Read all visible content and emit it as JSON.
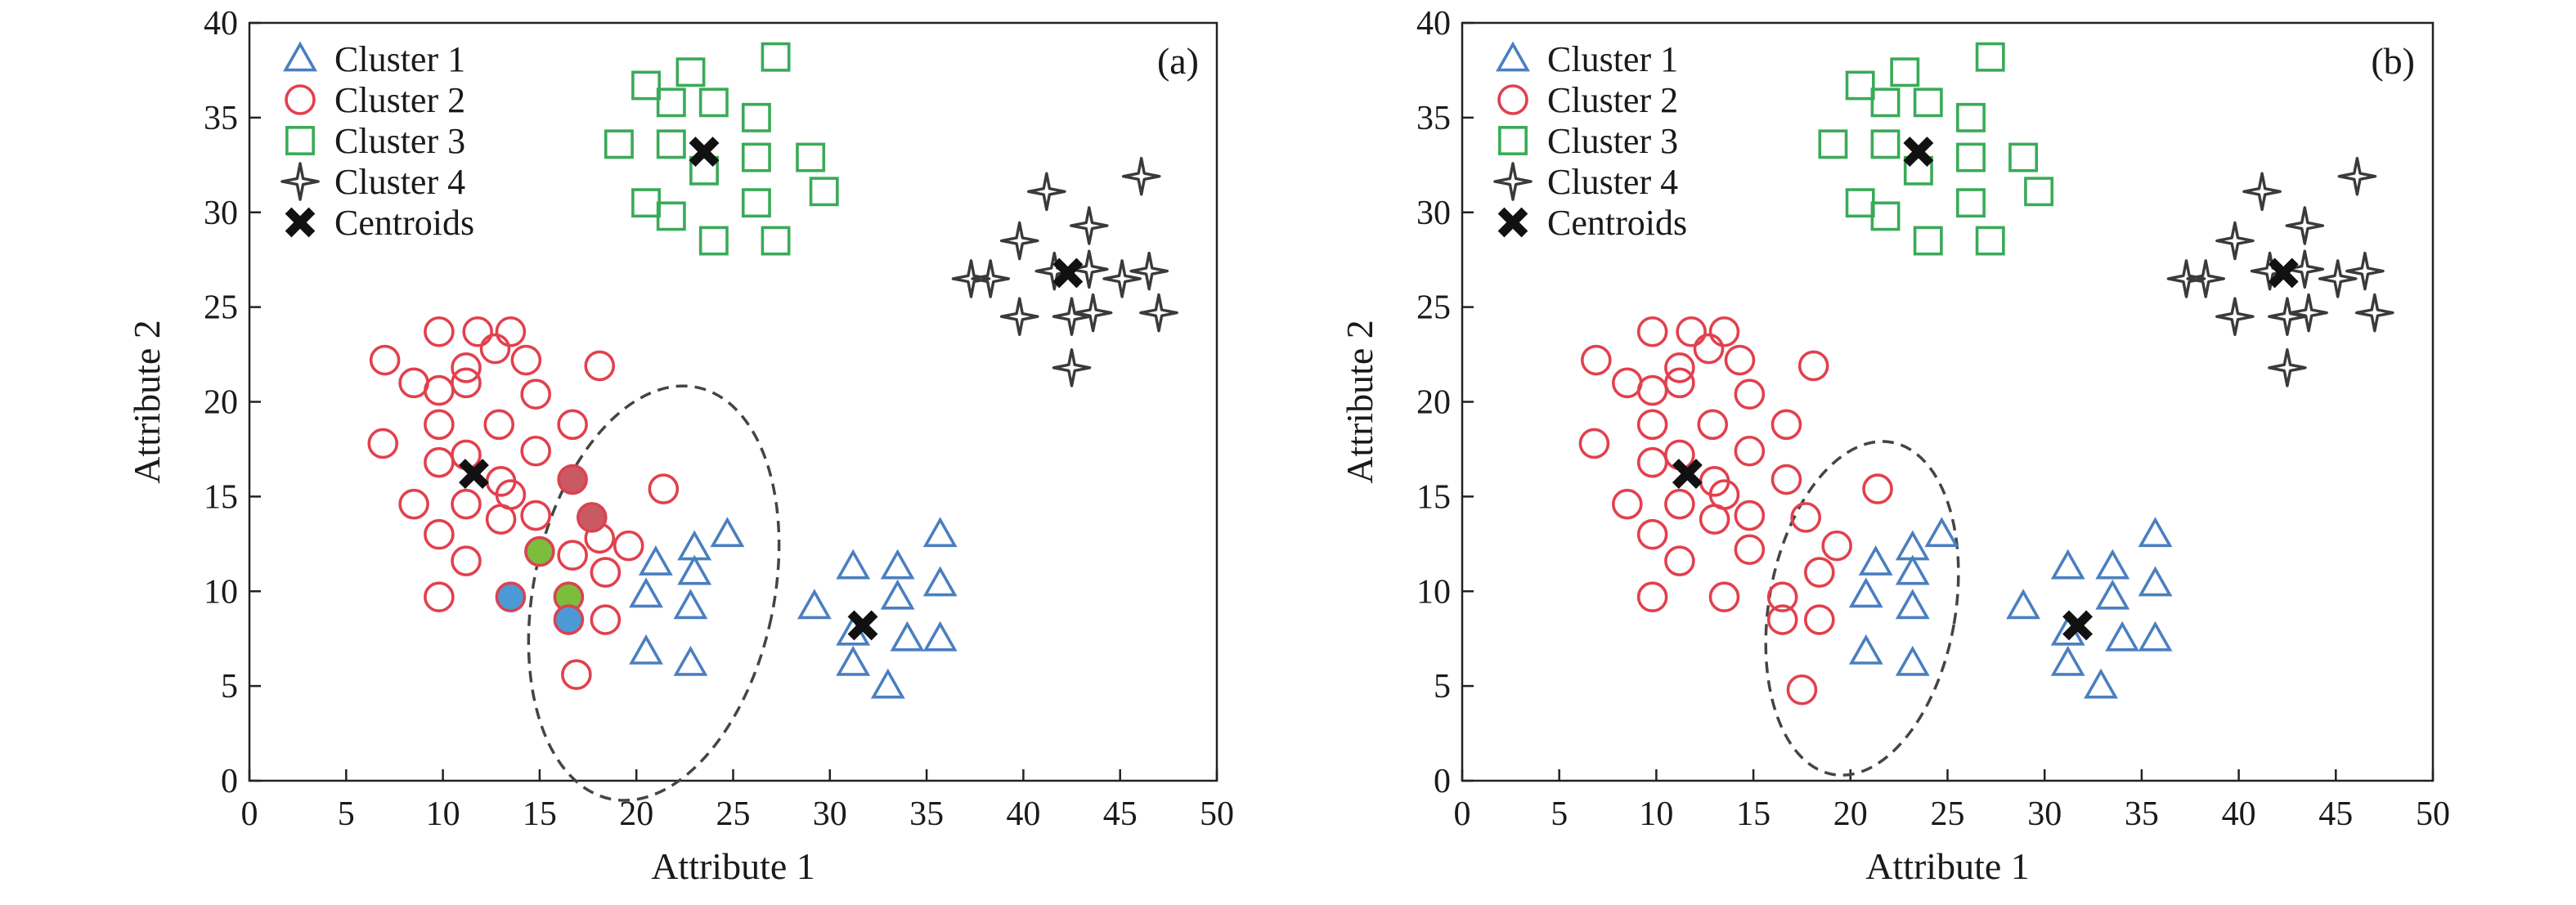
{
  "chart_data": [
    {
      "type": "scatter",
      "panel_label": "(a)",
      "xlabel": "Attribute 1",
      "ylabel": "Attribute 2",
      "xlim": [
        0,
        50
      ],
      "ylim": [
        0,
        40
      ],
      "xticks": [
        0,
        5,
        10,
        15,
        20,
        25,
        30,
        35,
        40,
        45,
        50
      ],
      "yticks": [
        0,
        5,
        10,
        15,
        20,
        25,
        30,
        35,
        40
      ],
      "grid": false,
      "legend_position": "top-left",
      "series": [
        {
          "name": "Cluster 1",
          "marker": "triangle",
          "color": "#4a7fc0",
          "points": [
            [
              21,
              11.5
            ],
            [
              23,
              12.3
            ],
            [
              23,
              11
            ],
            [
              24.7,
              13
            ],
            [
              20.5,
              9.8
            ],
            [
              22.8,
              9.2
            ],
            [
              20.5,
              6.8
            ],
            [
              22.8,
              6.2
            ],
            [
              29.2,
              9.2
            ],
            [
              31.2,
              11.3
            ],
            [
              33.5,
              11.3
            ],
            [
              35.7,
              13
            ],
            [
              33.5,
              9.7
            ],
            [
              35.7,
              10.4
            ],
            [
              31.2,
              7.8
            ],
            [
              31.2,
              6.2
            ],
            [
              34,
              7.5
            ],
            [
              35.7,
              7.5
            ],
            [
              33,
              5
            ]
          ]
        },
        {
          "name": "Cluster 2",
          "marker": "circle",
          "color": "#e2404d",
          "points": [
            [
              7,
              22.2
            ],
            [
              8.5,
              21
            ],
            [
              9.8,
              20.6
            ],
            [
              9.8,
              23.7
            ],
            [
              11.2,
              21.8
            ],
            [
              11.8,
              23.7
            ],
            [
              12.7,
              22.8
            ],
            [
              13.5,
              23.7
            ],
            [
              14.3,
              22.2
            ],
            [
              14.8,
              20.4
            ],
            [
              11.2,
              21
            ],
            [
              6.9,
              17.8
            ],
            [
              9.8,
              18.8
            ],
            [
              12.9,
              18.8
            ],
            [
              16.7,
              18.8
            ],
            [
              9.8,
              16.8
            ],
            [
              11.2,
              17.2
            ],
            [
              14.8,
              17.4
            ],
            [
              18.1,
              21.9
            ],
            [
              13,
              15.8
            ],
            [
              13.5,
              15.1
            ],
            [
              11.2,
              14.6
            ],
            [
              8.5,
              14.6
            ],
            [
              13,
              13.8
            ],
            [
              14.8,
              14
            ],
            [
              9.8,
              13
            ],
            [
              11.2,
              11.6
            ],
            [
              16.7,
              11.9
            ],
            [
              18.1,
              12.8
            ],
            [
              19.6,
              12.4
            ],
            [
              18.4,
              11
            ],
            [
              9.8,
              9.7
            ],
            [
              18.4,
              8.5
            ],
            [
              16.9,
              5.6
            ],
            [
              21.4,
              15.4
            ]
          ]
        },
        {
          "name": "Cluster 3",
          "marker": "square",
          "color": "#3aaa58",
          "points": [
            [
              20.5,
              36.7
            ],
            [
              22.8,
              37.4
            ],
            [
              27.2,
              38.2
            ],
            [
              21.8,
              35.8
            ],
            [
              24,
              35.8
            ],
            [
              26.2,
              35
            ],
            [
              19.1,
              33.6
            ],
            [
              21.8,
              33.6
            ],
            [
              23.5,
              32.2
            ],
            [
              26.2,
              32.9
            ],
            [
              29,
              32.9
            ],
            [
              20.5,
              30.5
            ],
            [
              21.8,
              29.8
            ],
            [
              26.2,
              30.5
            ],
            [
              29.7,
              31.1
            ],
            [
              24,
              28.5
            ],
            [
              27.2,
              28.5
            ]
          ]
        },
        {
          "name": "Cluster 4",
          "marker": "star4",
          "color": "#3a3a3a",
          "points": [
            [
              41.2,
              31.1
            ],
            [
              46.1,
              31.9
            ],
            [
              39.8,
              28.5
            ],
            [
              43.4,
              29.3
            ],
            [
              37.3,
              26.5
            ],
            [
              38.3,
              26.5
            ],
            [
              41.6,
              26.9
            ],
            [
              43.4,
              27
            ],
            [
              45.1,
              26.5
            ],
            [
              46.5,
              26.9
            ],
            [
              39.8,
              24.5
            ],
            [
              42.5,
              24.5
            ],
            [
              43.6,
              24.7
            ],
            [
              47,
              24.7
            ],
            [
              42.5,
              21.8
            ]
          ]
        },
        {
          "name": "Centroids",
          "marker": "x",
          "color": "#111111",
          "points": [
            [
              23.5,
              33.2
            ],
            [
              42.3,
              26.8
            ],
            [
              11.6,
              16.2
            ],
            [
              31.7,
              8.2
            ]
          ]
        }
      ],
      "highlighted_points": [
        {
          "x": 16.7,
          "y": 15.9,
          "fill": "#c95a63",
          "stroke": "#d94350"
        },
        {
          "x": 17.7,
          "y": 13.9,
          "fill": "#c95a63",
          "stroke": "#d94350"
        },
        {
          "x": 15,
          "y": 12.1,
          "fill": "#7cbd3e",
          "stroke": "#d94350"
        },
        {
          "x": 16.5,
          "y": 9.7,
          "fill": "#7cbd3e",
          "stroke": "#d94350"
        },
        {
          "x": 13.5,
          "y": 9.7,
          "fill": "#4b9ad6",
          "stroke": "#d94350"
        },
        {
          "x": 16.5,
          "y": 8.5,
          "fill": "#4b9ad6",
          "stroke": "#d94350"
        }
      ],
      "ellipse": {
        "cx": 20.9,
        "cy": 9.9,
        "rx": 6.2,
        "ry": 11.1,
        "rotation_deg": 12,
        "dashed": true
      }
    },
    {
      "type": "scatter",
      "panel_label": "(b)",
      "xlabel": "Attribute 1",
      "ylabel": "Attribute 2",
      "xlim": [
        0,
        50
      ],
      "ylim": [
        0,
        40
      ],
      "xticks": [
        0,
        5,
        10,
        15,
        20,
        25,
        30,
        35,
        40,
        45,
        50
      ],
      "yticks": [
        0,
        5,
        10,
        15,
        20,
        25,
        30,
        35,
        40
      ],
      "grid": false,
      "legend_position": "top-left",
      "series": [
        {
          "name": "Cluster 1",
          "marker": "triangle",
          "color": "#4a7fc0",
          "points": [
            [
              21.3,
              11.5
            ],
            [
              23.2,
              12.3
            ],
            [
              23.2,
              11
            ],
            [
              24.7,
              13
            ],
            [
              20.8,
              9.8
            ],
            [
              23.2,
              9.2
            ],
            [
              20.8,
              6.8
            ],
            [
              23.2,
              6.2
            ],
            [
              28.9,
              9.2
            ],
            [
              31.2,
              11.3
            ],
            [
              33.5,
              11.3
            ],
            [
              35.7,
              13
            ],
            [
              33.5,
              9.7
            ],
            [
              35.7,
              10.4
            ],
            [
              31.2,
              7.8
            ],
            [
              31.2,
              6.2
            ],
            [
              34,
              7.5
            ],
            [
              35.7,
              7.5
            ],
            [
              32.9,
              5
            ]
          ]
        },
        {
          "name": "Cluster 2",
          "marker": "circle",
          "color": "#e2404d",
          "points": [
            [
              6.9,
              22.2
            ],
            [
              8.5,
              21
            ],
            [
              9.8,
              20.6
            ],
            [
              9.8,
              23.7
            ],
            [
              11.2,
              21.8
            ],
            [
              11.8,
              23.7
            ],
            [
              12.7,
              22.8
            ],
            [
              13.5,
              23.7
            ],
            [
              14.3,
              22.2
            ],
            [
              14.8,
              20.4
            ],
            [
              11.2,
              21
            ],
            [
              6.8,
              17.8
            ],
            [
              9.8,
              18.8
            ],
            [
              12.9,
              18.8
            ],
            [
              16.7,
              18.8
            ],
            [
              9.8,
              16.8
            ],
            [
              11.2,
              17.2
            ],
            [
              14.8,
              17.4
            ],
            [
              18.1,
              21.9
            ],
            [
              13,
              15.8
            ],
            [
              13.5,
              15.1
            ],
            [
              11.2,
              14.6
            ],
            [
              8.5,
              14.6
            ],
            [
              13,
              13.8
            ],
            [
              14.8,
              14
            ],
            [
              9.8,
              13
            ],
            [
              11.2,
              11.6
            ],
            [
              14.8,
              12.2
            ],
            [
              16.7,
              15.9
            ],
            [
              17.7,
              13.9
            ],
            [
              19.3,
              12.4
            ],
            [
              18.4,
              11
            ],
            [
              9.8,
              9.7
            ],
            [
              13.5,
              9.7
            ],
            [
              16.5,
              9.7
            ],
            [
              16.5,
              8.5
            ],
            [
              18.4,
              8.5
            ],
            [
              17.5,
              4.8
            ],
            [
              21.4,
              15.4
            ]
          ]
        },
        {
          "name": "Cluster 3",
          "marker": "square",
          "color": "#3aaa58",
          "points": [
            [
              20.5,
              36.7
            ],
            [
              22.8,
              37.4
            ],
            [
              27.2,
              38.2
            ],
            [
              21.8,
              35.8
            ],
            [
              24,
              35.8
            ],
            [
              26.2,
              35
            ],
            [
              19.1,
              33.6
            ],
            [
              21.8,
              33.6
            ],
            [
              23.5,
              32.2
            ],
            [
              26.2,
              32.9
            ],
            [
              28.9,
              32.9
            ],
            [
              20.5,
              30.5
            ],
            [
              21.8,
              29.8
            ],
            [
              26.2,
              30.5
            ],
            [
              29.7,
              31.1
            ],
            [
              24,
              28.5
            ],
            [
              27.2,
              28.5
            ]
          ]
        },
        {
          "name": "Cluster 4",
          "marker": "star4",
          "color": "#3a3a3a",
          "points": [
            [
              41.2,
              31.1
            ],
            [
              46.1,
              31.9
            ],
            [
              39.8,
              28.5
            ],
            [
              43.4,
              29.3
            ],
            [
              37.3,
              26.5
            ],
            [
              38.3,
              26.5
            ],
            [
              41.6,
              26.9
            ],
            [
              43.4,
              27
            ],
            [
              45.1,
              26.5
            ],
            [
              46.5,
              26.9
            ],
            [
              39.8,
              24.5
            ],
            [
              42.5,
              24.5
            ],
            [
              43.6,
              24.7
            ],
            [
              47,
              24.7
            ],
            [
              42.5,
              21.8
            ]
          ]
        },
        {
          "name": "Centroids",
          "marker": "x",
          "color": "#111111",
          "points": [
            [
              23.5,
              33.2
            ],
            [
              42.3,
              26.8
            ],
            [
              11.6,
              16.2
            ],
            [
              31.7,
              8.2
            ]
          ]
        }
      ],
      "highlighted_points": [],
      "ellipse": {
        "cx": 20.6,
        "cy": 9.1,
        "rx": 4.8,
        "ry": 8.9,
        "rotation_deg": 10,
        "dashed": true
      }
    }
  ]
}
